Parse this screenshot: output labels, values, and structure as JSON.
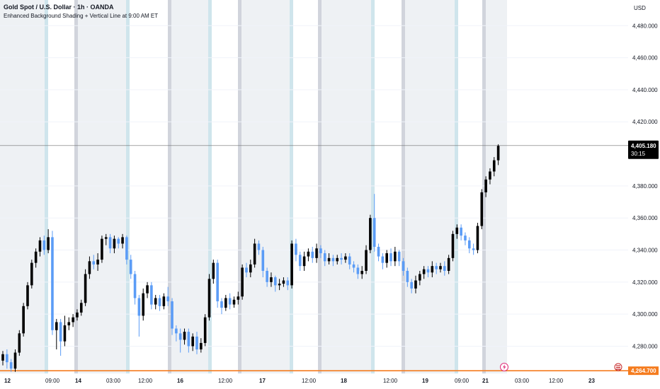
{
  "header": {
    "title": "Gold Spot / U.S. Dollar · 1h · OANDA",
    "indicator": "Enhanced Background Shading + Vertical Line at 9:00 AM ET",
    "currency": "USD"
  },
  "colors": {
    "bull": "#5b9cf6",
    "bear": "#000000",
    "shade": "#eef1f4",
    "line_blue": "#cfe5ec",
    "line_gray": "#d1d4dc",
    "last_price": "#000000",
    "low_line": "#f57c1f"
  },
  "chart_data": {
    "type": "candlestick",
    "y_ticks": [
      "4,480.000",
      "4,460.000",
      "4,440.000",
      "4,420.000",
      "4,380.000",
      "4,360.000",
      "4,340.000",
      "4,320.000",
      "4,300.000",
      "4,280.000"
    ],
    "y_tick_values": [
      4480,
      4460,
      4440,
      4420,
      4380,
      4360,
      4340,
      4320,
      4300,
      4280
    ],
    "ylim": [
      4263,
      4496
    ],
    "x_ticks": [
      "12",
      "09:00",
      "14",
      "03:00",
      "12:00",
      "16",
      "12:00",
      "17",
      "12:00",
      "18",
      "12:00",
      "19",
      "09:00",
      "21",
      "03:00",
      "12:00",
      "23"
    ],
    "x_tick_bold": [
      true,
      false,
      true,
      false,
      false,
      true,
      false,
      true,
      false,
      true,
      false,
      true,
      false,
      true,
      false,
      false,
      true
    ],
    "last_price": {
      "value": 4405.18,
      "label": "4,405.180",
      "countdown": "30:15"
    },
    "low_price": {
      "value": 4264.7,
      "label": "4,264.700"
    },
    "candles": [
      [
        4271,
        4275,
        4268,
        4277
      ],
      [
        4275,
        4270,
        4266,
        4278
      ],
      [
        4270,
        4266,
        4264,
        4272
      ],
      [
        4266,
        4276,
        4264,
        4278
      ],
      [
        4276,
        4288,
        4274,
        4290
      ],
      [
        4288,
        4305,
        4286,
        4307
      ],
      [
        4305,
        4318,
        4303,
        4320
      ],
      [
        4318,
        4332,
        4316,
        4334
      ],
      [
        4332,
        4339,
        4329,
        4341
      ],
      [
        4339,
        4346,
        4336,
        4348
      ],
      [
        4346,
        4340,
        4337,
        4349
      ],
      [
        4340,
        4348,
        4338,
        4353
      ],
      [
        4348,
        4290,
        4287,
        4352
      ],
      [
        4290,
        4295,
        4278,
        4297
      ],
      [
        4295,
        4283,
        4274,
        4297
      ],
      [
        4283,
        4293,
        4280,
        4299
      ],
      [
        4293,
        4295,
        4290,
        4298
      ],
      [
        4295,
        4298,
        4292,
        4300
      ],
      [
        4298,
        4301,
        4296,
        4303
      ],
      [
        4301,
        4307,
        4299,
        4309
      ],
      [
        4307,
        4325,
        4305,
        4328
      ],
      [
        4325,
        4333,
        4322,
        4336
      ],
      [
        4333,
        4331,
        4328,
        4337
      ],
      [
        4331,
        4334,
        4327,
        4338
      ],
      [
        4334,
        4347,
        4332,
        4349
      ],
      [
        4347,
        4348,
        4343,
        4350
      ],
      [
        4348,
        4341,
        4338,
        4350
      ],
      [
        4341,
        4347,
        4338,
        4349
      ],
      [
        4347,
        4344,
        4341,
        4348
      ],
      [
        4344,
        4348,
        4341,
        4350
      ],
      [
        4348,
        4334,
        4331,
        4349
      ],
      [
        4334,
        4325,
        4322,
        4337
      ],
      [
        4325,
        4310,
        4306,
        4327
      ],
      [
        4310,
        4299,
        4286,
        4312
      ],
      [
        4299,
        4313,
        4296,
        4316
      ],
      [
        4313,
        4318,
        4310,
        4320
      ],
      [
        4318,
        4306,
        4303,
        4320
      ],
      [
        4306,
        4310,
        4303,
        4312
      ],
      [
        4310,
        4305,
        4302,
        4312
      ],
      [
        4305,
        4311,
        4303,
        4313
      ],
      [
        4311,
        4308,
        4305,
        4317
      ],
      [
        4308,
        4291,
        4287,
        4310
      ],
      [
        4291,
        4288,
        4283,
        4293
      ],
      [
        4288,
        4284,
        4276,
        4291
      ],
      [
        4284,
        4289,
        4281,
        4291
      ],
      [
        4289,
        4280,
        4276,
        4291
      ],
      [
        4280,
        4286,
        4277,
        4288
      ],
      [
        4286,
        4278,
        4275,
        4289
      ],
      [
        4278,
        4282,
        4276,
        4285
      ],
      [
        4282,
        4298,
        4280,
        4300
      ],
      [
        4298,
        4322,
        4296,
        4325
      ],
      [
        4322,
        4332,
        4319,
        4334
      ],
      [
        4332,
        4308,
        4304,
        4334
      ],
      [
        4308,
        4304,
        4300,
        4310
      ],
      [
        4304,
        4310,
        4302,
        4312
      ],
      [
        4310,
        4306,
        4303,
        4313
      ],
      [
        4306,
        4309,
        4304,
        4311
      ],
      [
        4309,
        4311,
        4306,
        4314
      ],
      [
        4311,
        4329,
        4309,
        4331
      ],
      [
        4329,
        4326,
        4323,
        4332
      ],
      [
        4326,
        4331,
        4323,
        4334
      ],
      [
        4331,
        4344,
        4329,
        4347
      ],
      [
        4344,
        4340,
        4337,
        4346
      ],
      [
        4340,
        4327,
        4323,
        4342
      ],
      [
        4327,
        4320,
        4317,
        4329
      ],
      [
        4320,
        4323,
        4317,
        4326
      ],
      [
        4323,
        4318,
        4314,
        4324
      ],
      [
        4318,
        4319,
        4315,
        4322
      ],
      [
        4319,
        4321,
        4317,
        4323
      ],
      [
        4321,
        4318,
        4315,
        4323
      ],
      [
        4318,
        4344,
        4316,
        4346
      ],
      [
        4344,
        4337,
        4333,
        4347
      ],
      [
        4337,
        4330,
        4327,
        4339
      ],
      [
        4330,
        4336,
        4327,
        4339
      ],
      [
        4336,
        4339,
        4333,
        4341
      ],
      [
        4339,
        4335,
        4332,
        4342
      ],
      [
        4335,
        4341,
        4332,
        4344
      ],
      [
        4341,
        4338,
        4335,
        4343
      ],
      [
        4338,
        4333,
        4330,
        4340
      ],
      [
        4333,
        4335,
        4331,
        4338
      ],
      [
        4335,
        4333,
        4330,
        4337
      ],
      [
        4333,
        4335,
        4331,
        4337
      ],
      [
        4335,
        4334,
        4331,
        4338
      ],
      [
        4334,
        4336,
        4332,
        4338
      ],
      [
        4336,
        4331,
        4328,
        4338
      ],
      [
        4331,
        4329,
        4326,
        4333
      ],
      [
        4329,
        4325,
        4322,
        4331
      ],
      [
        4325,
        4327,
        4322,
        4330
      ],
      [
        4327,
        4340,
        4325,
        4343
      ],
      [
        4340,
        4360,
        4338,
        4362
      ],
      [
        4360,
        4342,
        4339,
        4375
      ],
      [
        4342,
        4336,
        4333,
        4344
      ],
      [
        4336,
        4332,
        4328,
        4338
      ],
      [
        4332,
        4338,
        4329,
        4340
      ],
      [
        4338,
        4333,
        4330,
        4341
      ],
      [
        4333,
        4339,
        4330,
        4342
      ],
      [
        4339,
        4333,
        4330,
        4340
      ],
      [
        4333,
        4327,
        4324,
        4335
      ],
      [
        4327,
        4320,
        4317,
        4329
      ],
      [
        4320,
        4316,
        4313,
        4322
      ],
      [
        4316,
        4321,
        4313,
        4324
      ],
      [
        4321,
        4325,
        4318,
        4327
      ],
      [
        4325,
        4328,
        4322,
        4330
      ],
      [
        4328,
        4326,
        4323,
        4330
      ],
      [
        4326,
        4330,
        4323,
        4333
      ],
      [
        4330,
        4328,
        4325,
        4332
      ],
      [
        4328,
        4330,
        4326,
        4332
      ],
      [
        4330,
        4327,
        4324,
        4333
      ],
      [
        4327,
        4335,
        4325,
        4337
      ],
      [
        4335,
        4350,
        4333,
        4352
      ],
      [
        4350,
        4354,
        4347,
        4356
      ],
      [
        4354,
        4349,
        4346,
        4356
      ],
      [
        4349,
        4346,
        4343,
        4351
      ],
      [
        4346,
        4341,
        4338,
        4348
      ],
      [
        4341,
        4340,
        4337,
        4344
      ],
      [
        4340,
        4355,
        4338,
        4357
      ],
      [
        4355,
        4376,
        4353,
        4378
      ],
      [
        4376,
        4384,
        4373,
        4386
      ],
      [
        4384,
        4389,
        4381,
        4391
      ],
      [
        4389,
        4396,
        4386,
        4398
      ],
      [
        4396,
        4405,
        4393,
        4406
      ]
    ]
  }
}
